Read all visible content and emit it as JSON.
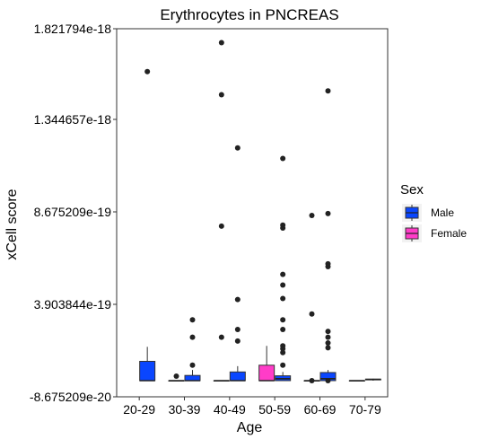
{
  "chart_data": {
    "type": "box",
    "title": "Erythrocytes in PNCREAS",
    "xlabel": "Age",
    "ylabel": "xCell score",
    "categories": [
      "20-29",
      "30-39",
      "40-49",
      "50-59",
      "60-69",
      "70-79"
    ],
    "yticks": [
      "-8.675209e-20",
      "3.903844e-19",
      "8.675209e-19",
      "1.344657e-18",
      "1.821794e-18"
    ],
    "ylim": [
      -8.675209e-20,
      1.821794e-18
    ],
    "grid": false,
    "legend": {
      "title": "Sex",
      "position": "right",
      "entries": [
        {
          "label": "Male",
          "color": "#0a46ff"
        },
        {
          "label": "Female",
          "color": "#ff3cc8"
        }
      ]
    },
    "boxes": [
      {
        "category": "20-29",
        "sex": "Male",
        "q1": 0.0,
        "median": 0.0,
        "q3": 1e-19,
        "whisker_low": 0.0,
        "whisker_high": 1.75e-19,
        "outliers": [
          1.6e-18
        ]
      },
      {
        "category": "30-39",
        "sex": "Female",
        "q1": 0.0,
        "median": 0.0,
        "q3": 0.0,
        "whisker_low": 0.0,
        "whisker_high": 0.0,
        "outliers": [
          2.3e-20
        ]
      },
      {
        "category": "30-39",
        "sex": "Male",
        "q1": 0.0,
        "median": 0.0,
        "q3": 2.7e-20,
        "whisker_low": 0.0,
        "whisker_high": 5.5e-20,
        "outliers": [
          8e-20,
          2.25e-19,
          3.15e-19
        ]
      },
      {
        "category": "40-49",
        "sex": "Female",
        "q1": 0.0,
        "median": 0.0,
        "q3": 0.0,
        "whisker_low": 0.0,
        "whisker_high": 0.0,
        "outliers": [
          2.25e-19,
          8e-19,
          1.48e-18,
          1.75e-18
        ]
      },
      {
        "category": "40-49",
        "sex": "Male",
        "q1": 0.0,
        "median": 0.0,
        "q3": 4.5e-20,
        "whisker_low": 0.0,
        "whisker_high": 7.5e-20,
        "outliers": [
          2.05e-19,
          2.65e-19,
          4.2e-19,
          1.205e-18
        ]
      },
      {
        "category": "50-59",
        "sex": "Female",
        "q1": 0.0,
        "median": 0.0,
        "q3": 8e-20,
        "whisker_low": 0.0,
        "whisker_high": 1.8e-19,
        "outliers": []
      },
      {
        "category": "50-59",
        "sex": "Male",
        "q1": 0.0,
        "median": 1e-20,
        "q3": 2.5e-20,
        "whisker_low": 0.0,
        "whisker_high": 4.5e-20,
        "outliers": [
          8e-20,
          1.45e-19,
          1.65e-19,
          1.8e-19,
          2.65e-19,
          3.15e-19,
          4.25e-19,
          4.95e-19,
          5.5e-19,
          7.9e-19,
          8.05e-19,
          1.15e-18
        ]
      },
      {
        "category": "60-69",
        "sex": "Female",
        "q1": 0.0,
        "median": 0.0,
        "q3": 0.0,
        "whisker_low": 0.0,
        "whisker_high": 0.0,
        "outliers": [
          0.0,
          3.45e-19,
          8.55e-19
        ]
      },
      {
        "category": "60-69",
        "sex": "Male",
        "q1": 0.0,
        "median": 1e-20,
        "q3": 4.2e-20,
        "whisker_low": 0.0,
        "whisker_high": 5.5e-20,
        "outliers": [
          0.0,
          1.7e-19,
          1.95e-19,
          2.25e-19,
          2.55e-19,
          5.9e-19,
          6.05e-19,
          8.65e-19,
          1.5e-18
        ]
      },
      {
        "category": "70-79",
        "sex": "Female",
        "q1": 0.0,
        "median": 0.0,
        "q3": 0.0,
        "whisker_low": 0.0,
        "whisker_high": 0.0,
        "outliers": []
      },
      {
        "category": "70-79",
        "sex": "Male",
        "q1": 4e-21,
        "median": 6e-21,
        "q3": 8e-21,
        "whisker_low": 0.0,
        "whisker_high": 1e-20,
        "outliers": []
      }
    ]
  }
}
